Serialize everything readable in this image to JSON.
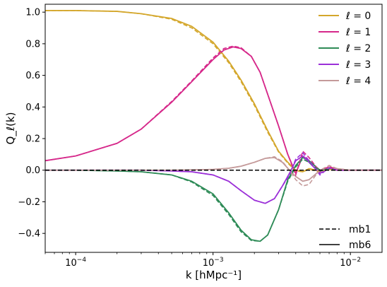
{
  "chart_data": {
    "type": "line",
    "xscale": "log",
    "xlim": [
      6e-05,
      0.017
    ],
    "ylim": [
      -0.52,
      1.05
    ],
    "xlabel": "k [hMpc⁻¹]",
    "ylabel": "Q_ℓ(k)",
    "x_ticks": [
      {
        "value": 0.0001,
        "base": "10",
        "exp": "−4"
      },
      {
        "value": 0.001,
        "base": "10",
        "exp": "−3"
      },
      {
        "value": 0.01,
        "base": "10",
        "exp": "−2"
      }
    ],
    "y_ticks": [
      {
        "value": 1.0,
        "label": "1.0"
      },
      {
        "value": 0.8,
        "label": "0.8"
      },
      {
        "value": 0.6,
        "label": "0.6"
      },
      {
        "value": 0.4,
        "label": "0.4"
      },
      {
        "value": 0.2,
        "label": "0.2"
      },
      {
        "value": 0.0,
        "label": "0.0"
      },
      {
        "value": -0.2,
        "label": "−0.2"
      },
      {
        "value": -0.4,
        "label": "−0.4"
      }
    ],
    "grid": false,
    "legend_position": "top-right",
    "style_legend_position": "bottom-right",
    "styles": [
      {
        "name": "mb1",
        "dash": "dashed"
      },
      {
        "name": "mb6",
        "dash": "solid"
      }
    ],
    "series": [
      {
        "name": "ℓ = 0",
        "color": "#d4a72c",
        "x": [
          6e-05,
          0.0001,
          0.0002,
          0.0003,
          0.0005,
          0.0007,
          0.001,
          0.0013,
          0.0016,
          0.002,
          0.0025,
          0.003,
          0.0035,
          0.004,
          0.0045,
          0.005,
          0.006,
          0.007,
          0.008,
          0.01,
          0.012,
          0.017
        ],
        "mb6": [
          1.01,
          1.01,
          1.005,
          0.99,
          0.96,
          0.91,
          0.81,
          0.69,
          0.57,
          0.42,
          0.25,
          0.12,
          0.05,
          0.0,
          -0.01,
          0.01,
          -0.005,
          0.005,
          0.0,
          0.0,
          0.0,
          0.0
        ],
        "mb1": [
          1.01,
          1.01,
          1.005,
          0.99,
          0.955,
          0.9,
          0.8,
          0.68,
          0.56,
          0.41,
          0.24,
          0.115,
          0.045,
          -0.005,
          -0.01,
          0.005,
          -0.01,
          0.005,
          0.0,
          0.0,
          0.0,
          0.0
        ]
      },
      {
        "name": "ℓ = 1",
        "color": "#d6288a",
        "x": [
          6e-05,
          0.0001,
          0.0002,
          0.0003,
          0.0005,
          0.0007,
          0.001,
          0.0012,
          0.0014,
          0.0016,
          0.0019,
          0.0022,
          0.0025,
          0.003,
          0.0035,
          0.004,
          0.0045,
          0.005,
          0.006,
          0.007,
          0.008,
          0.01,
          0.012,
          0.017
        ],
        "mb6": [
          0.06,
          0.09,
          0.17,
          0.26,
          0.43,
          0.56,
          0.7,
          0.76,
          0.78,
          0.77,
          0.72,
          0.62,
          0.48,
          0.28,
          0.1,
          -0.02,
          0.09,
          0.06,
          0.0,
          0.02,
          0.0,
          0.0,
          0.0,
          0.0
        ],
        "mb1": [
          0.06,
          0.09,
          0.17,
          0.26,
          0.435,
          0.565,
          0.71,
          0.77,
          0.785,
          0.775,
          0.72,
          0.62,
          0.48,
          0.28,
          0.1,
          -0.03,
          0.12,
          0.08,
          -0.01,
          0.025,
          0.0,
          0.0,
          0.0,
          0.0
        ]
      },
      {
        "name": "ℓ = 2",
        "color": "#2e8b57",
        "x": [
          6e-05,
          0.0001,
          0.0002,
          0.0003,
          0.0005,
          0.0007,
          0.001,
          0.0013,
          0.0016,
          0.0019,
          0.0022,
          0.0025,
          0.003,
          0.0035,
          0.004,
          0.0045,
          0.005,
          0.006,
          0.007,
          0.008,
          0.01,
          0.012,
          0.017
        ],
        "mb6": [
          0.0,
          0.0,
          -0.005,
          -0.01,
          -0.03,
          -0.07,
          -0.15,
          -0.27,
          -0.38,
          -0.44,
          -0.45,
          -0.41,
          -0.25,
          -0.06,
          0.03,
          0.08,
          0.06,
          0.0,
          0.01,
          0.0,
          0.0,
          0.0,
          0.0
        ],
        "mb1": [
          0.0,
          0.0,
          -0.005,
          -0.01,
          -0.03,
          -0.075,
          -0.16,
          -0.28,
          -0.39,
          -0.445,
          -0.45,
          -0.41,
          -0.25,
          -0.07,
          0.02,
          0.07,
          0.05,
          -0.005,
          0.01,
          0.0,
          0.0,
          0.0,
          0.0
        ]
      },
      {
        "name": "ℓ = 3",
        "color": "#9b30d8",
        "x": [
          6e-05,
          0.0001,
          0.0002,
          0.0003,
          0.0005,
          0.0007,
          0.001,
          0.0013,
          0.0016,
          0.002,
          0.0024,
          0.0028,
          0.0032,
          0.0036,
          0.004,
          0.0045,
          0.005,
          0.006,
          0.007,
          0.008,
          0.01,
          0.012,
          0.017
        ],
        "mb6": [
          0.0,
          0.0,
          0.0,
          0.0,
          -0.005,
          -0.01,
          -0.03,
          -0.07,
          -0.13,
          -0.19,
          -0.21,
          -0.18,
          -0.1,
          -0.02,
          0.06,
          0.09,
          0.05,
          -0.02,
          0.01,
          0.0,
          0.0,
          0.0,
          0.0
        ],
        "mb1": [
          0.0,
          0.0,
          0.0,
          0.0,
          -0.005,
          -0.01,
          -0.03,
          -0.07,
          -0.13,
          -0.19,
          -0.21,
          -0.18,
          -0.1,
          -0.03,
          0.07,
          0.11,
          0.06,
          -0.03,
          0.015,
          0.0,
          0.0,
          0.0,
          0.0
        ]
      },
      {
        "name": "ℓ = 4",
        "color": "#c49a9a",
        "x": [
          6e-05,
          0.0001,
          0.0002,
          0.0003,
          0.0005,
          0.0007,
          0.001,
          0.0013,
          0.0016,
          0.002,
          0.0024,
          0.0028,
          0.0032,
          0.0036,
          0.004,
          0.0045,
          0.005,
          0.0055,
          0.006,
          0.007,
          0.008,
          0.01,
          0.012,
          0.017
        ],
        "mb6": [
          0.0,
          0.0,
          0.0,
          0.0,
          0.0,
          0.002,
          0.005,
          0.012,
          0.025,
          0.05,
          0.075,
          0.08,
          0.05,
          0.0,
          -0.04,
          -0.07,
          -0.06,
          -0.03,
          0.0,
          0.02,
          0.01,
          0.0,
          0.0,
          0.0
        ],
        "mb1": [
          0.0,
          0.0,
          0.0,
          0.0,
          0.0,
          0.002,
          0.005,
          0.012,
          0.025,
          0.05,
          0.075,
          0.085,
          0.055,
          0.0,
          -0.06,
          -0.1,
          -0.09,
          -0.04,
          0.0,
          0.03,
          0.01,
          0.0,
          0.0,
          0.0
        ]
      }
    ],
    "reference_line": {
      "y": 0.0,
      "color": "#000000",
      "dash": "dashed"
    }
  }
}
